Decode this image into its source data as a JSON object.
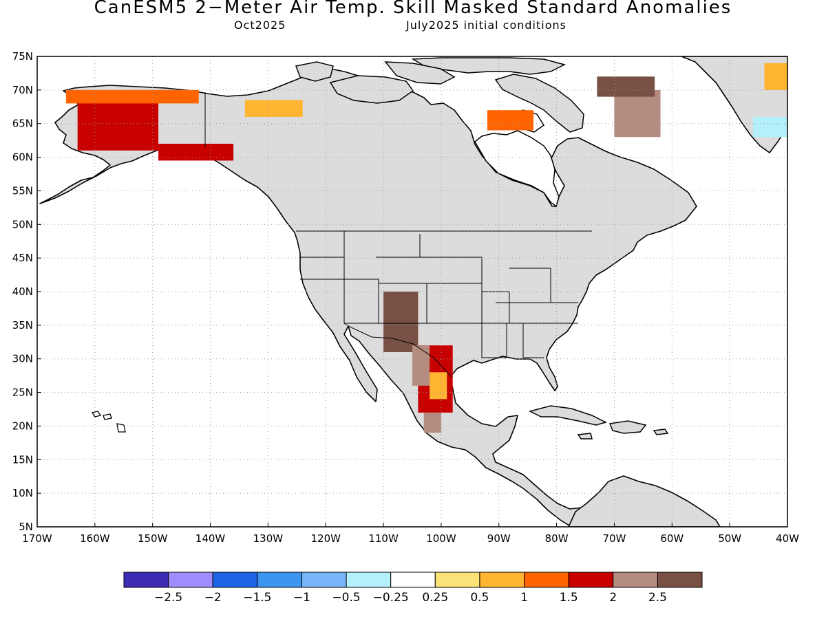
{
  "title": "CanESM5 2−Meter Air Temp. Skill Masked Standard Anomalies",
  "subtitle_left": "Oct2025",
  "subtitle_right": "July2025 initial conditions",
  "colors": {
    "land_mask": "#dcdcdc",
    "ocean": "#ffffff",
    "coast": "#000000",
    "grid": "#999999"
  },
  "map": {
    "lon_range": [
      -170,
      -40
    ],
    "lat_range": [
      5,
      75
    ],
    "lat_labels": [
      "75N",
      "70N",
      "65N",
      "60N",
      "55N",
      "50N",
      "45N",
      "40N",
      "35N",
      "30N",
      "25N",
      "20N",
      "15N",
      "10N",
      "5N"
    ],
    "lon_labels": [
      "170W",
      "160W",
      "150W",
      "140W",
      "130W",
      "120W",
      "110W",
      "100W",
      "90W",
      "80W",
      "70W",
      "60W",
      "50W",
      "40W"
    ]
  },
  "anomaly_regions": [
    {
      "name": "alaska-west",
      "lon": [
        -163,
        -149
      ],
      "lat": [
        61,
        69
      ],
      "category": "1.5"
    },
    {
      "name": "alaska-south",
      "lon": [
        -149,
        -136
      ],
      "lat": [
        59.5,
        62
      ],
      "category": "1.5"
    },
    {
      "name": "alaska-north-rim",
      "lon": [
        -165,
        -142
      ],
      "lat": [
        68,
        70
      ],
      "category": "1"
    },
    {
      "name": "yukon-north",
      "lon": [
        -134,
        -124
      ],
      "lat": [
        66,
        68.5
      ],
      "category": "0.5"
    },
    {
      "name": "greenland-west-hot",
      "lon": [
        -70,
        -62
      ],
      "lat": [
        63,
        70
      ],
      "category": "2"
    },
    {
      "name": "greenland-west-brown",
      "lon": [
        -73,
        -63
      ],
      "lat": [
        69,
        72
      ],
      "category": "2.5"
    },
    {
      "name": "baffin-orange",
      "lon": [
        -92,
        -84
      ],
      "lat": [
        64,
        67
      ],
      "category": "1"
    },
    {
      "name": "greenland-east-cold",
      "lon": [
        -46,
        -40
      ],
      "lat": [
        63,
        66
      ],
      "category": "-0.5"
    },
    {
      "name": "greenland-ne-warm",
      "lon": [
        -44,
        -40
      ],
      "lat": [
        70,
        74
      ],
      "category": "0.5"
    },
    {
      "name": "southwest-brown",
      "lon": [
        -110,
        -104
      ],
      "lat": [
        31,
        40
      ],
      "category": "2.5"
    },
    {
      "name": "mexico-north-hot",
      "lon": [
        -104,
        -98
      ],
      "lat": [
        22,
        32
      ],
      "category": "1.5"
    },
    {
      "name": "mexico-core",
      "lon": [
        -102,
        -99
      ],
      "lat": [
        24,
        28
      ],
      "category": "0.5"
    },
    {
      "name": "mexico-red",
      "lon": [
        -105,
        -102
      ],
      "lat": [
        26,
        32
      ],
      "category": "2"
    },
    {
      "name": "mexico-south-red",
      "lon": [
        -103,
        -100
      ],
      "lat": [
        19,
        22
      ],
      "category": "2"
    }
  ],
  "colorbar": {
    "colors": [
      "#3c2bb4",
      "#a08cff",
      "#1e64e6",
      "#3c96f0",
      "#78b4f8",
      "#b4f0fa",
      "#ffffff",
      "#fae178",
      "#ffb432",
      "#ff6400",
      "#c80000",
      "#b48c80",
      "#785044"
    ],
    "labels": [
      "−2.5",
      "−2",
      "−1.5",
      "−1",
      "−0.5",
      "−0.25",
      "0.25",
      "0.5",
      "1",
      "1.5",
      "2",
      "2.5"
    ]
  }
}
